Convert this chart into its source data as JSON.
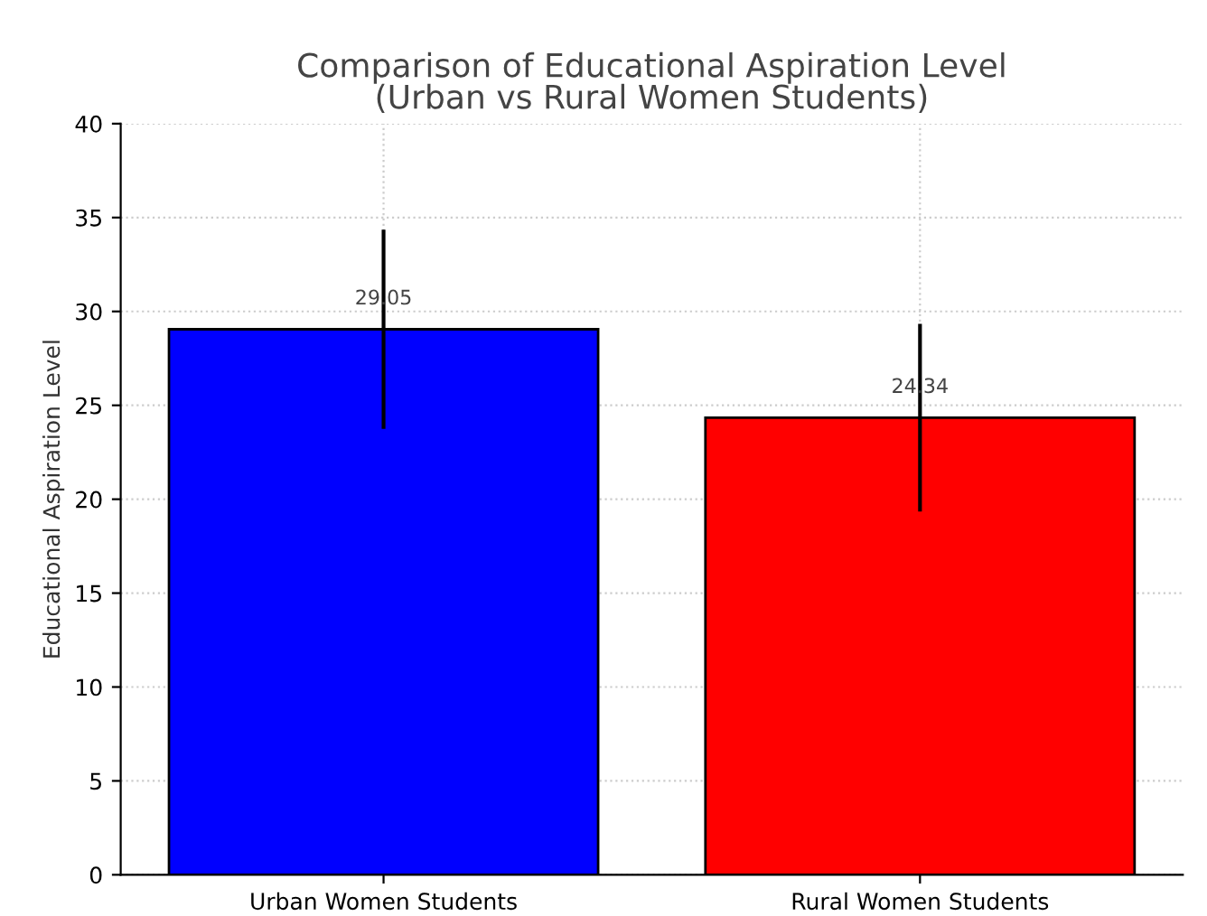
{
  "chart_data": {
    "type": "bar",
    "title": "Comparison of Educational Aspiration Level\n(Urban vs Rural Women Students)",
    "ylabel": "Educational Aspiration Level",
    "categories": [
      "Urban Women Students",
      "Rural Women Students"
    ],
    "values": [
      29.05,
      24.34
    ],
    "colors": [
      "#0000ff",
      "#ff0000"
    ],
    "errors": [
      5.3,
      5.0
    ],
    "data_labels": true,
    "ylim": [
      0,
      40
    ],
    "yticks": [
      0,
      5,
      10,
      15,
      20,
      25,
      30,
      35,
      40
    ],
    "grid": true
  }
}
